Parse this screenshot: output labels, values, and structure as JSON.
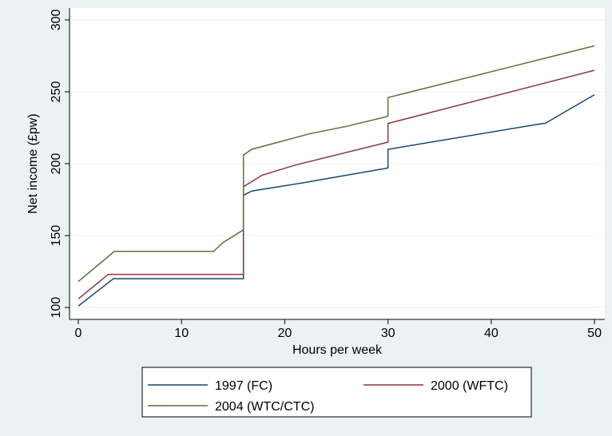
{
  "chart_data": {
    "type": "line",
    "x_label": "Hours per week",
    "y_label": "Net income (£pw)",
    "xlim": [
      -0.85,
      51
    ],
    "ylim": [
      91.7,
      308.3
    ],
    "xticks": [
      0,
      10,
      20,
      30,
      40,
      50
    ],
    "yticks": [
      100,
      150,
      200,
      250,
      300
    ],
    "grid": true,
    "legend": "bottom",
    "series": [
      {
        "name": "1997 (FC)",
        "color": "#1a476f",
        "x": [
          0,
          3.4,
          16,
          16,
          16.8,
          22,
          30,
          30,
          45,
          45.2,
          50
        ],
        "values": [
          101,
          120,
          120,
          178,
          181,
          187,
          197,
          210,
          228,
          228,
          248
        ]
      },
      {
        "name": "2000 (WFTC)",
        "color": "#90353b",
        "x": [
          0,
          2.9,
          16,
          16,
          17.8,
          21,
          30,
          30,
          50
        ],
        "values": [
          106,
          123,
          123,
          184,
          192,
          199,
          215,
          228,
          265
        ]
      },
      {
        "name": "2004 (WTC/CTC)",
        "color": "#55752f",
        "x": [
          0,
          3.5,
          13.1,
          14,
          16,
          16,
          16.8,
          22.5,
          26,
          30,
          30,
          50
        ],
        "values": [
          118,
          139,
          139,
          145,
          154,
          206,
          210,
          221,
          226,
          233,
          246,
          282
        ]
      }
    ]
  }
}
